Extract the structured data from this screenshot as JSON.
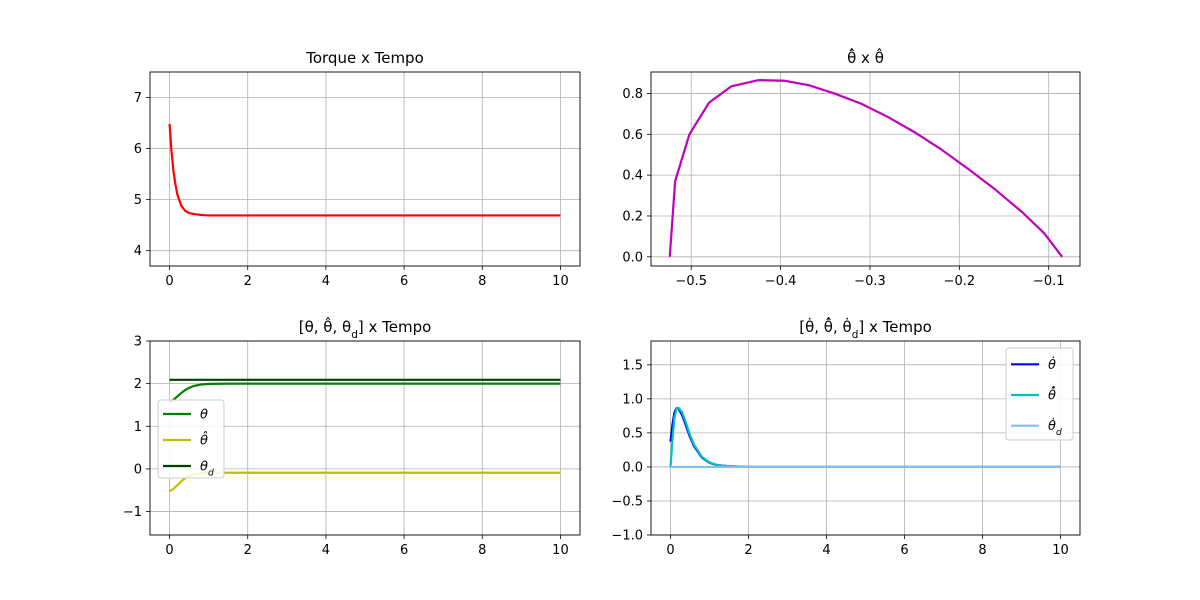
{
  "chart_data": [
    {
      "id": "torque",
      "type": "line",
      "title": "Torque x Tempo",
      "xlabel": "",
      "ylabel": "",
      "xlim": [
        -0.5,
        10.5
      ],
      "ylim": [
        3.7,
        7.5
      ],
      "xticks": [
        0,
        2,
        4,
        6,
        8,
        10
      ],
      "xtick_labels": [
        "0",
        "2",
        "4",
        "6",
        "8",
        "10"
      ],
      "yticks": [
        4,
        5,
        6,
        7
      ],
      "ytick_labels": [
        "4",
        "5",
        "6",
        "7"
      ],
      "grid": true,
      "legend": null,
      "series": [
        {
          "color": "#ff0000",
          "x": [
            0,
            0.05,
            0.1,
            0.15,
            0.2,
            0.3,
            0.4,
            0.5,
            0.6,
            0.8,
            1.0,
            1.5,
            2,
            4,
            6,
            8,
            10
          ],
          "y": [
            6.48,
            5.95,
            5.56,
            5.3,
            5.1,
            4.88,
            4.78,
            4.74,
            4.72,
            4.7,
            4.69,
            4.69,
            4.69,
            4.69,
            4.69,
            4.69,
            4.69
          ]
        }
      ]
    },
    {
      "id": "phase",
      "type": "line",
      "title": "θ̂̇ x θ̂",
      "xlabel": "",
      "ylabel": "",
      "xlim": [
        -0.545,
        -0.065
      ],
      "ylim": [
        -0.045,
        0.905
      ],
      "xticks": [
        -0.5,
        -0.4,
        -0.3,
        -0.2,
        -0.1
      ],
      "xtick_labels": [
        "−0.5",
        "−0.4",
        "−0.3",
        "−0.2",
        "−0.1"
      ],
      "yticks": [
        0,
        0.2,
        0.4,
        0.6,
        0.8
      ],
      "ytick_labels": [
        "0.0",
        "0.2",
        "0.4",
        "0.6",
        "0.8"
      ],
      "grid": true,
      "legend": null,
      "series": [
        {
          "color": "#bf00bf",
          "x": [
            -0.524,
            -0.518,
            -0.502,
            -0.48,
            -0.455,
            -0.425,
            -0.395,
            -0.368,
            -0.34,
            -0.31,
            -0.28,
            -0.25,
            -0.22,
            -0.19,
            -0.16,
            -0.13,
            -0.105,
            -0.085
          ],
          "y": [
            0,
            0.37,
            0.6,
            0.755,
            0.835,
            0.865,
            0.862,
            0.84,
            0.8,
            0.75,
            0.685,
            0.61,
            0.525,
            0.43,
            0.33,
            0.22,
            0.115,
            0.0
          ]
        }
      ]
    },
    {
      "id": "positions",
      "type": "line",
      "title": "[θ, θ̂, θ_d] x Tempo",
      "xlabel": "",
      "ylabel": "",
      "xlim": [
        -0.5,
        10.5
      ],
      "ylim": [
        -1.55,
        3.0
      ],
      "xticks": [
        0,
        2,
        4,
        6,
        8,
        10
      ],
      "xtick_labels": [
        "0",
        "2",
        "4",
        "6",
        "8",
        "10"
      ],
      "yticks": [
        -1,
        0,
        1,
        2,
        3
      ],
      "ytick_labels": [
        "−1",
        "0",
        "1",
        "2",
        "3"
      ],
      "grid": true,
      "legend": "center-left",
      "series": [
        {
          "name": "θ",
          "color": "#008000",
          "x": [
            0,
            0.1,
            0.2,
            0.3,
            0.4,
            0.5,
            0.6,
            0.8,
            1.0,
            1.5,
            2,
            4,
            6,
            8,
            10
          ],
          "y": [
            1.57,
            1.62,
            1.7,
            1.78,
            1.85,
            1.9,
            1.94,
            1.98,
            1.995,
            2.0,
            2.0,
            2.0,
            2.0,
            2.0,
            2.0
          ]
        },
        {
          "name": "θ̂",
          "color": "#bfbf00",
          "x": [
            0,
            0.1,
            0.2,
            0.3,
            0.4,
            0.5,
            0.6,
            0.8,
            1.0,
            1.5,
            2,
            4,
            6,
            8,
            10
          ],
          "y": [
            -0.52,
            -0.47,
            -0.38,
            -0.29,
            -0.22,
            -0.17,
            -0.13,
            -0.1,
            -0.09,
            -0.09,
            -0.09,
            -0.09,
            -0.09,
            -0.09,
            -0.09
          ]
        },
        {
          "name": "θ_d",
          "color": "#004000",
          "x": [
            0,
            10
          ],
          "y": [
            2.09,
            2.09
          ]
        }
      ]
    },
    {
      "id": "velocities",
      "type": "line",
      "title": "[θ̇, θ̂̇, θ̇_d] x Tempo",
      "xlabel": "",
      "ylabel": "",
      "xlim": [
        -0.5,
        10.5
      ],
      "ylim": [
        -1.0,
        1.85
      ],
      "xticks": [
        0,
        2,
        4,
        6,
        8,
        10
      ],
      "xtick_labels": [
        "0",
        "2",
        "4",
        "6",
        "8",
        "10"
      ],
      "yticks": [
        -1.0,
        -0.5,
        0,
        0.5,
        1.0,
        1.5
      ],
      "ytick_labels": [
        "−1.0",
        "−0.5",
        "0.0",
        "0.5",
        "1.0",
        "1.5"
      ],
      "grid": true,
      "legend": "upper-right",
      "series": [
        {
          "name": "θ̇",
          "color": "#0000ff",
          "x": [
            0,
            0.05,
            0.1,
            0.15,
            0.2,
            0.3,
            0.4,
            0.5,
            0.6,
            0.8,
            1.0,
            1.2,
            1.5,
            2,
            4,
            6,
            8,
            10
          ],
          "y": [
            0.37,
            0.62,
            0.8,
            0.86,
            0.86,
            0.76,
            0.6,
            0.44,
            0.31,
            0.14,
            0.06,
            0.025,
            0.01,
            0.0,
            0.0,
            0.0,
            0.0,
            0.0
          ]
        },
        {
          "name": "θ̂̇",
          "color": "#00bfbf",
          "x": [
            0,
            0.05,
            0.1,
            0.15,
            0.2,
            0.3,
            0.4,
            0.5,
            0.6,
            0.8,
            1.0,
            1.2,
            1.5,
            2,
            4,
            6,
            8,
            10
          ],
          "y": [
            0.0,
            0.4,
            0.72,
            0.85,
            0.87,
            0.8,
            0.64,
            0.47,
            0.33,
            0.15,
            0.065,
            0.028,
            0.01,
            0.0,
            0.0,
            0.0,
            0.0,
            0.0
          ]
        },
        {
          "name": "θ̇_d",
          "color": "#80c0f0",
          "x": [
            0,
            10
          ],
          "y": [
            0.0,
            0.0
          ]
        }
      ]
    }
  ]
}
